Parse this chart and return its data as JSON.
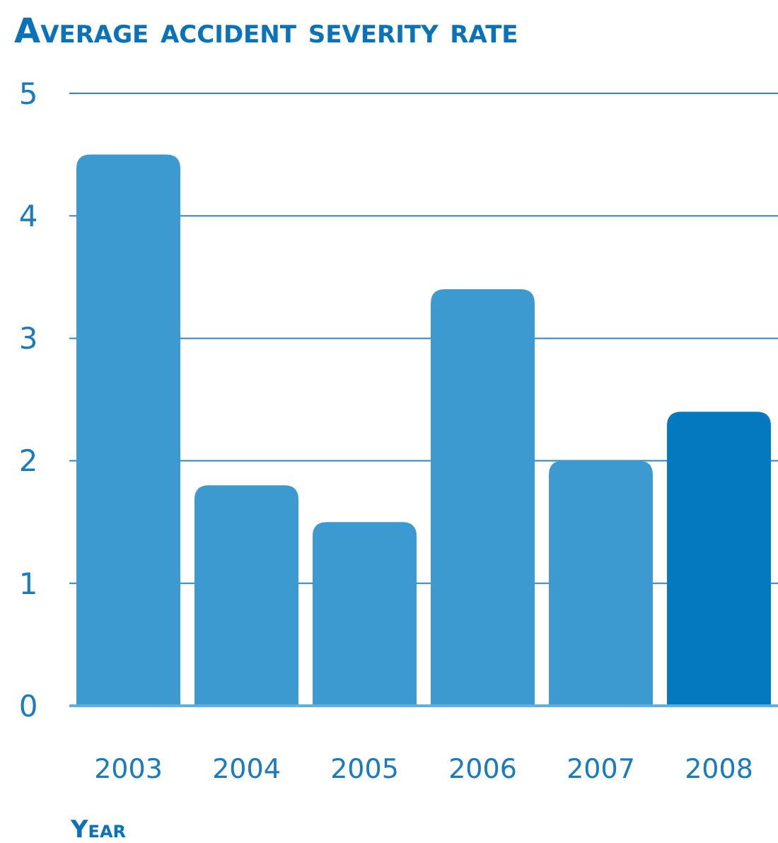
{
  "chart_data": {
    "type": "bar",
    "title": "Average accident severity rate",
    "xlabel": "Year",
    "categories": [
      "2003",
      "2004",
      "2005",
      "2006",
      "2007",
      "2008"
    ],
    "values": [
      4.5,
      1.8,
      1.5,
      3.4,
      2.0,
      2.4
    ],
    "colors": [
      "#3d9ad1",
      "#3d9ad1",
      "#3d9ad1",
      "#3d9ad1",
      "#3d9ad1",
      "#0479c0"
    ],
    "ylim": [
      0,
      5
    ],
    "yticks": [
      0,
      1,
      2,
      3,
      4,
      5
    ],
    "grid": "y"
  }
}
